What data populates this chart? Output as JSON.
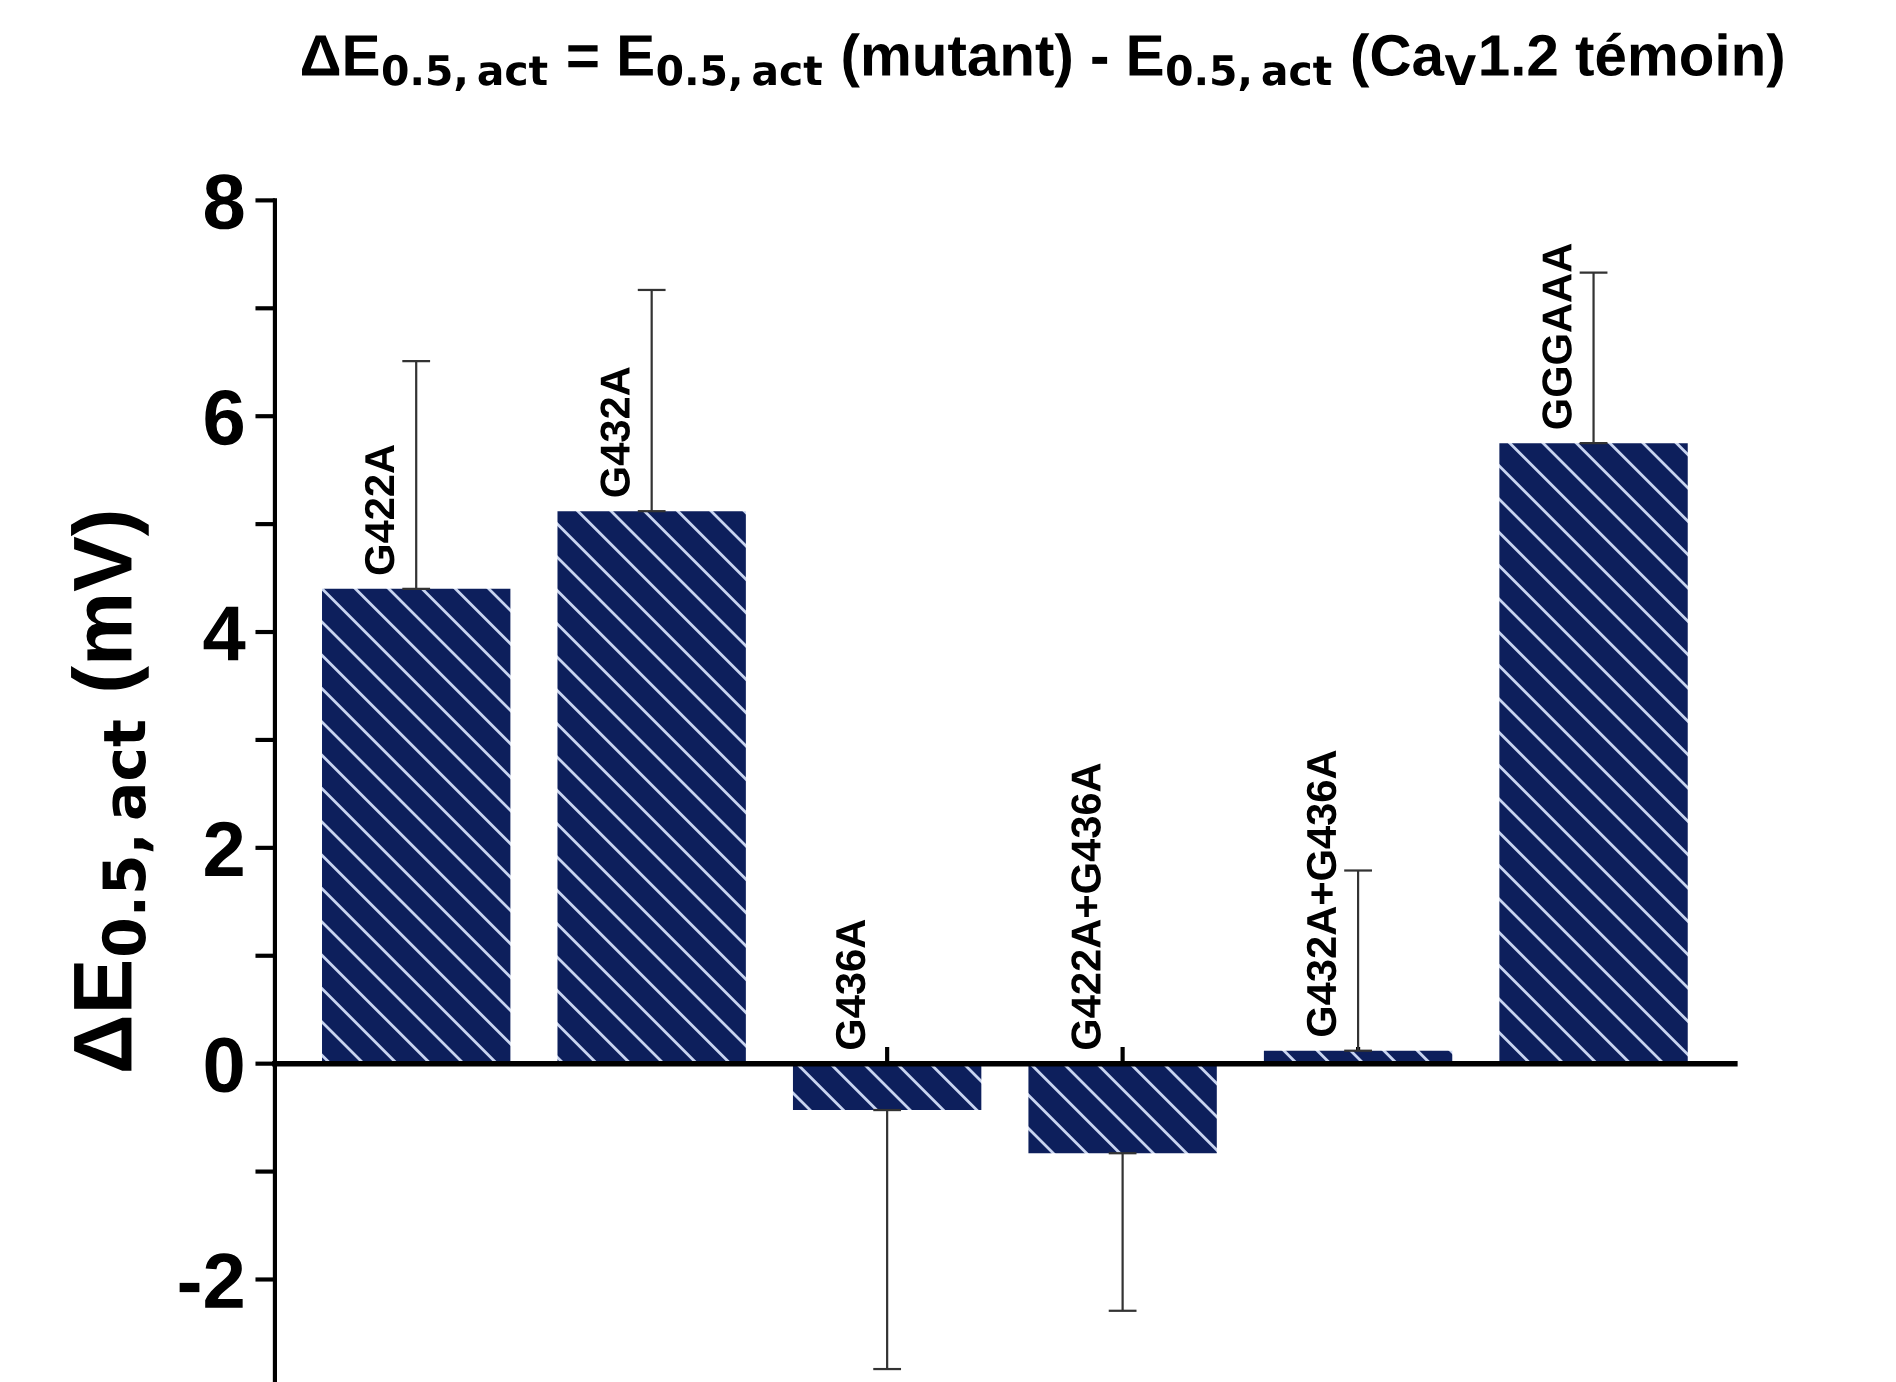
{
  "chart_data": {
    "type": "bar",
    "title": "ΔE$_{0.5,act}$ = E$_{0.5,act}$ (mutant) - E$_{0.5,act}$ (Ca$_{V}$1.2 témoin)",
    "ylabel": "ΔE$_{0.5,act}$ (mV)",
    "categories": [
      "G422A",
      "G432A",
      "G436A",
      "G422A+G436A",
      "G432A+G436A",
      "GGGAAA"
    ],
    "values": [
      4.4,
      5.12,
      -0.43,
      -0.83,
      0.12,
      5.75
    ],
    "errors": [
      2.11,
      2.05,
      2.4,
      1.46,
      1.67,
      1.58
    ],
    "color": "#0d1f5c",
    "ylim": [
      -2.95,
      8
    ],
    "yticks": [
      -2,
      {
        "value": -1,
        "label": null
      },
      0,
      {
        "value": 1,
        "label": null
      },
      2,
      {
        "value": 3,
        "label": null
      },
      4,
      {
        "value": 5,
        "label": null
      },
      6,
      {
        "value": 7,
        "label": null
      },
      8
    ],
    "grid": false
  }
}
